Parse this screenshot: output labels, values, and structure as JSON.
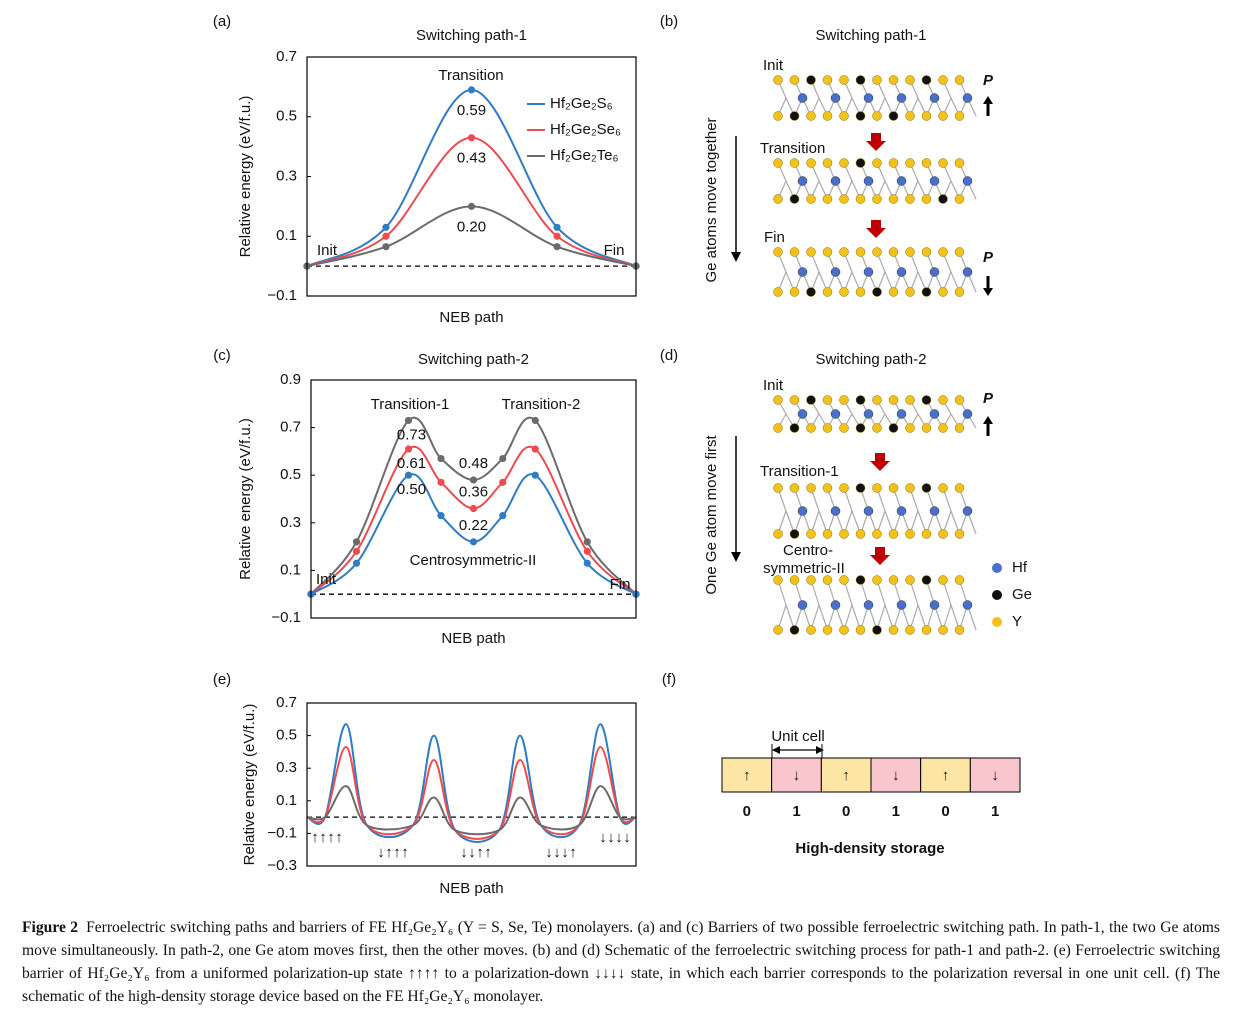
{
  "panel_labels": [
    "(a)",
    "(b)",
    "(c)",
    "(d)",
    "(e)",
    "(f)"
  ],
  "chart_data": [
    {
      "type": "line",
      "title": "Switching path-1",
      "xlabel": "NEB path",
      "ylabel": "Relative energy (eV/f.u.)",
      "xlim": [
        0,
        1
      ],
      "ylim": [
        -0.1,
        0.7
      ],
      "yticks": [
        {
          "value": -0.1,
          "label": "−0.1"
        },
        0.1,
        0.3,
        0.5,
        0.7
      ],
      "reference_line": 0,
      "markers": true,
      "legend": "upper right",
      "annotations": [
        "Transition",
        "Init",
        "Fin"
      ],
      "x": [
        0,
        0.24,
        0.5,
        0.76,
        1
      ],
      "series": [
        {
          "name": "Hf₂Ge₂S₆",
          "color": "#2f7bc4",
          "values": [
            0,
            0.13,
            0.59,
            0.13,
            0
          ],
          "value_labels": [
            null,
            null,
            "0.59",
            null,
            null
          ]
        },
        {
          "name": "Hf₂Ge₂Se₆",
          "color": "#ee4b4f",
          "values": [
            0,
            0.1,
            0.43,
            0.1,
            0
          ],
          "value_labels": [
            null,
            null,
            "0.43",
            null,
            null
          ]
        },
        {
          "name": "Hf₂Ge₂Te₆",
          "color": "#6b6b6b",
          "values": [
            0,
            0.065,
            0.2,
            0.065,
            0
          ],
          "value_labels": [
            null,
            null,
            "0.20",
            null,
            null
          ]
        }
      ]
    },
    {
      "type": "line",
      "title": "Switching path-2",
      "xlabel": "NEB path",
      "ylabel": "Relative energy (eV/f.u.)",
      "xlim": [
        0,
        1
      ],
      "ylim": [
        -0.1,
        0.9
      ],
      "yticks": [
        {
          "value": -0.1,
          "label": "−0.1"
        },
        0.1,
        0.3,
        0.5,
        0.7,
        0.9
      ],
      "reference_line": 0,
      "markers": true,
      "annotations": [
        "Transition-1",
        "Transition-2",
        "Centrosymmetric-II",
        "Init",
        "Fin"
      ],
      "x": [
        0,
        0.14,
        0.3,
        0.4,
        0.5,
        0.59,
        0.69,
        0.85,
        1
      ],
      "series": [
        {
          "color": "#6b6b6b",
          "values": [
            0,
            0.22,
            0.73,
            0.57,
            0.48,
            0.57,
            0.73,
            0.22,
            0
          ],
          "value_labels": [
            null,
            null,
            "0.73",
            null,
            "0.48",
            null,
            null,
            null,
            null
          ]
        },
        {
          "color": "#ee4b4f",
          "values": [
            0,
            0.18,
            0.61,
            0.47,
            0.36,
            0.47,
            0.61,
            0.18,
            0
          ],
          "value_labels": [
            null,
            null,
            "0.61",
            null,
            "0.36",
            null,
            null,
            null,
            null
          ]
        },
        {
          "color": "#2f7bc4",
          "values": [
            0,
            0.13,
            0.5,
            0.33,
            0.22,
            0.33,
            0.5,
            0.13,
            0
          ],
          "value_labels": [
            null,
            null,
            "0.50",
            null,
            "0.22",
            null,
            null,
            null,
            null
          ]
        }
      ]
    },
    {
      "type": "line",
      "xlabel": "NEB path",
      "ylabel": "Relative energy (eV/f.u.)",
      "xlim": [
        0,
        1
      ],
      "ylim": [
        -0.3,
        0.7
      ],
      "yticks": [
        {
          "value": -0.3,
          "label": "−0.3"
        },
        {
          "value": -0.1,
          "label": "−0.1"
        },
        0.1,
        0.3,
        0.5,
        0.7
      ],
      "reference_line": 0,
      "markers": false,
      "x": [
        0,
        0.055,
        0.119,
        0.182,
        0.322,
        0.386,
        0.45,
        0.584,
        0.647,
        0.711,
        0.827,
        0.891,
        0.951,
        1
      ],
      "series": [
        {
          "color": "#2f7bc4",
          "values": [
            0,
            0,
            0.57,
            -0.05,
            -0.05,
            0.5,
            -0.08,
            -0.08,
            0.5,
            -0.05,
            -0.05,
            0.57,
            0,
            0
          ]
        },
        {
          "color": "#ee4b4f",
          "values": [
            0,
            0,
            0.43,
            -0.05,
            -0.05,
            0.35,
            -0.08,
            -0.08,
            0.35,
            -0.05,
            -0.05,
            0.43,
            0,
            0
          ]
        },
        {
          "color": "#6b6b6b",
          "values": [
            0,
            0,
            0.19,
            -0.05,
            -0.05,
            0.12,
            -0.08,
            -0.08,
            0.12,
            -0.05,
            -0.05,
            0.19,
            0,
            0
          ]
        }
      ],
      "states": [
        [
          {
            "label": "↑",
            "color": "#000000"
          },
          {
            "label": "↑",
            "color": "#000000"
          },
          {
            "label": "↑",
            "color": "#000000"
          },
          {
            "label": "↑",
            "color": "#000000"
          }
        ],
        [
          {
            "label": "↓",
            "color": "#e02020"
          },
          {
            "label": "↑",
            "color": "#000000"
          },
          {
            "label": "↑",
            "color": "#000000"
          },
          {
            "label": "↑",
            "color": "#000000"
          }
        ],
        [
          {
            "label": "↓",
            "color": "#e02020"
          },
          {
            "label": "↓",
            "color": "#e02020"
          },
          {
            "label": "↑",
            "color": "#000000"
          },
          {
            "label": "↑",
            "color": "#000000"
          }
        ],
        [
          {
            "label": "↓",
            "color": "#e02020"
          },
          {
            "label": "↓",
            "color": "#e02020"
          },
          {
            "label": "↓",
            "color": "#e02020"
          },
          {
            "label": "↑",
            "color": "#000000"
          }
        ],
        [
          {
            "label": "↓",
            "color": "#e02020"
          },
          {
            "label": "↓",
            "color": "#e02020"
          },
          {
            "label": "↓",
            "color": "#e02020"
          },
          {
            "label": "↓",
            "color": "#e02020"
          }
        ]
      ]
    }
  ],
  "panel_b": {
    "title": "Switching path-1",
    "states": [
      "Init",
      "Transition",
      "Fin"
    ],
    "polarization": "P",
    "axis_label": "Ge atoms move together"
  },
  "panel_d": {
    "title": "Switching path-2",
    "states": [
      "Init",
      "Transition-1",
      [
        "Centro-",
        "symmetric-II"
      ]
    ],
    "polarization": "P",
    "axis_label": "One Ge atom move first",
    "legend": [
      {
        "name": "Hf",
        "color": "#4a6fc9"
      },
      {
        "name": "Ge",
        "color": "#111111"
      },
      {
        "name": "Y",
        "color": "#f2c21b"
      }
    ]
  },
  "panel_f": {
    "unit_cell_label": "Unit cell",
    "title": "High-density storage",
    "cells": [
      {
        "arrow": "↑",
        "bit": 0,
        "fill": "#fde6a5",
        "bit_color": "#f0a030"
      },
      {
        "arrow": "↓",
        "bit": 1,
        "fill": "#f8c6cc",
        "bit_color": "#ee5a6a"
      },
      {
        "arrow": "↑",
        "bit": 0,
        "fill": "#fde6a5",
        "bit_color": "#f0a030"
      },
      {
        "arrow": "↓",
        "bit": 1,
        "fill": "#f8c6cc",
        "bit_color": "#ee5a6a"
      },
      {
        "arrow": "↑",
        "bit": 0,
        "fill": "#fde6a5",
        "bit_color": "#f0a030"
      },
      {
        "arrow": "↓",
        "bit": 1,
        "fill": "#f8c6cc",
        "bit_color": "#ee5a6a"
      }
    ]
  },
  "caption": {
    "label": "Figure 2",
    "text": "Ferroelectric switching paths and barriers of FE Hf₂Ge₂Y₆ (Y = S, Se, Te) monolayers. (a) and (c) Barriers of two possible ferroelectric switching path. In path-1, the two Ge atoms move simultaneously. In path-2, one Ge atom moves first, then the other moves. (b) and (d) Schematic of the ferroelectric switching process for path-1 and path-2. (e) Ferroelectric switching barrier of Hf₂Ge₂Y₆ from a uniformed polarization-up state ↑↑↑↑ to a polarization-down ↓↓↓↓ state, in which each barrier corresponds to the polarization reversal in one unit cell. (f) The schematic of the high-density storage device based on the FE Hf₂Ge₂Y₆ monolayer."
  }
}
